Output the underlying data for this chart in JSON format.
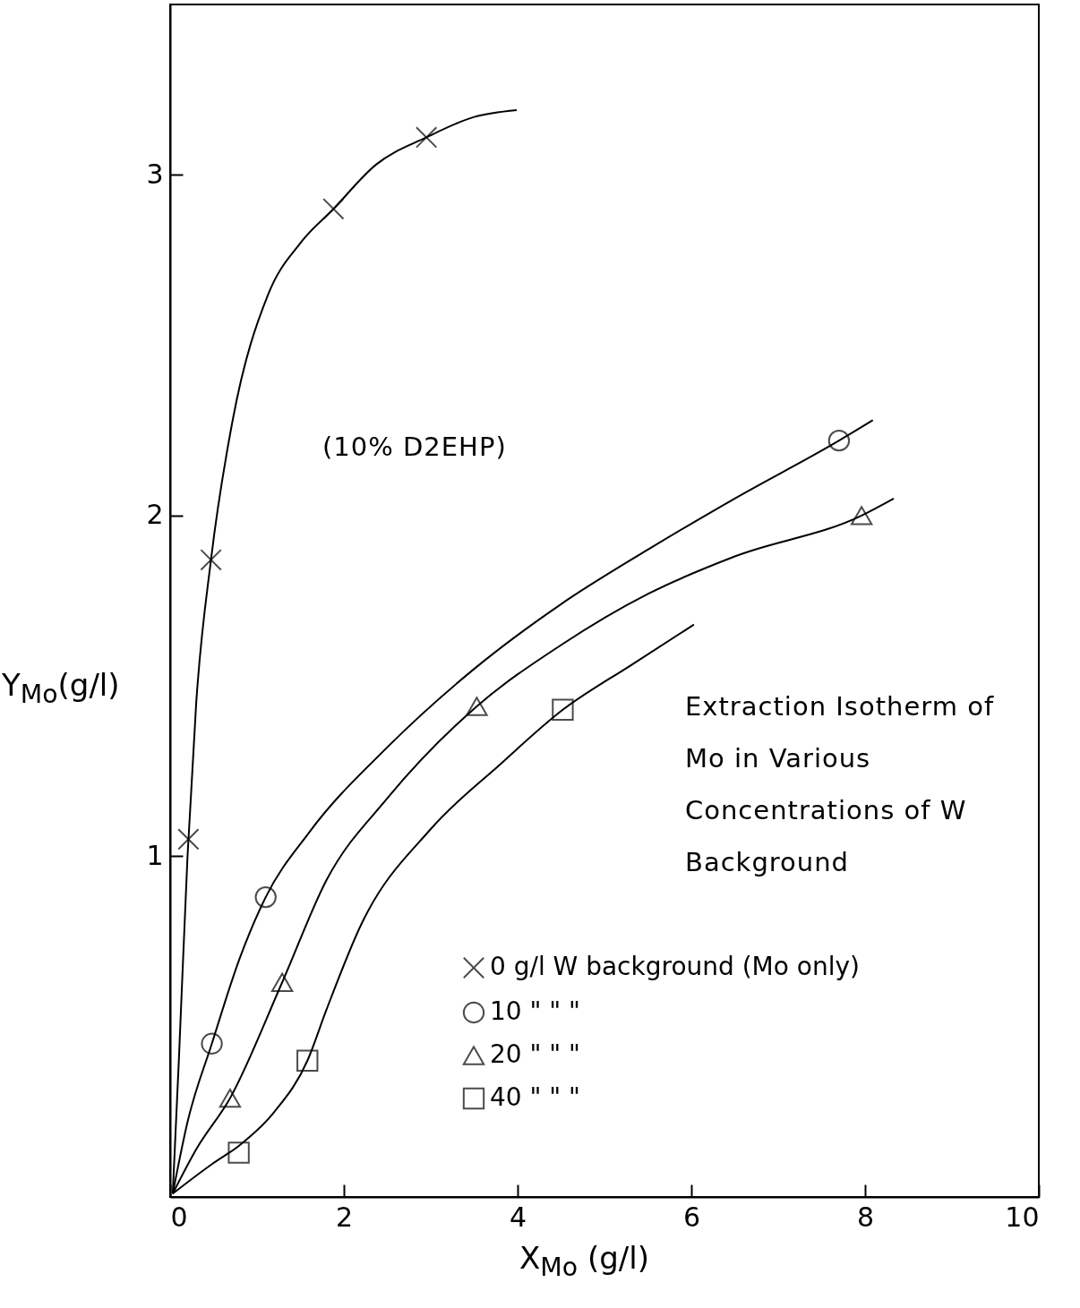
{
  "chart_data": {
    "type": "scatter",
    "xlabel": "X$_{Mo}$ (g/l)",
    "ylabel": "Y$_{Mo}$(g/l)",
    "annotations": [
      "(10% D2EHP)",
      "Extraction Isotherm of Mo in Various Concentrations of W Background"
    ],
    "xlim": [
      0,
      10
    ],
    "ylim": [
      0,
      3.5
    ],
    "xticks": [
      0,
      2,
      4,
      6,
      8,
      10
    ],
    "yticks": [
      1,
      2,
      3
    ],
    "grid": false,
    "legend": "bottom right",
    "series": [
      {
        "name": "0 g/l W background (Mo only)",
        "color": "#000000",
        "marker": "cross",
        "x": [
          0.21,
          0.47,
          1.88,
          2.95
        ],
        "values": [
          1.05,
          1.87,
          2.9,
          3.11
        ]
      },
      {
        "name": "10 \" \" \"",
        "color": "#000000",
        "marker": "circle",
        "x": [
          0.48,
          1.1,
          7.7
        ],
        "values": [
          0.45,
          0.88,
          2.22
        ]
      },
      {
        "name": "20 \" \" \"",
        "color": "#000000",
        "marker": "triangle",
        "x": [
          0.69,
          1.29,
          3.53,
          7.96
        ],
        "values": [
          0.29,
          0.63,
          1.44,
          2.0
        ]
      },
      {
        "name": "40 \" \" \"",
        "color": "#000000",
        "marker": "square",
        "x": [
          0.79,
          1.58,
          4.52
        ],
        "values": [
          0.13,
          0.4,
          1.43
        ]
      },
      {
        "type": "line",
        "color": "#000000",
        "x": [
          0.03,
          0.1,
          0.2,
          0.3,
          0.47,
          0.72,
          1.13,
          1.5,
          1.88,
          2.37,
          2.95,
          3.5,
          3.99
        ],
        "values": [
          0.01,
          0.4,
          1.0,
          1.45,
          1.87,
          2.28,
          2.65,
          2.8,
          2.9,
          3.03,
          3.11,
          3.17,
          3.19
        ]
      },
      {
        "type": "line",
        "color": "#000000",
        "x": [
          0.03,
          0.2,
          0.48,
          0.8,
          1.1,
          1.6,
          2.5,
          3.5,
          4.5,
          5.5,
          6.5,
          7.7,
          8.09
        ],
        "values": [
          0.01,
          0.22,
          0.45,
          0.7,
          0.88,
          1.07,
          1.32,
          1.55,
          1.74,
          1.9,
          2.05,
          2.22,
          2.28
        ]
      },
      {
        "type": "line",
        "color": "#000000",
        "x": [
          0.03,
          0.3,
          0.69,
          1.29,
          1.8,
          2.5,
          3.53,
          4.5,
          5.5,
          6.5,
          7.96,
          8.33
        ],
        "values": [
          0.01,
          0.14,
          0.29,
          0.63,
          0.93,
          1.17,
          1.44,
          1.62,
          1.77,
          1.88,
          2.0,
          2.05
        ]
      },
      {
        "type": "line",
        "color": "#000000",
        "x": [
          0.03,
          0.5,
          0.79,
          1.2,
          1.58,
          1.8,
          2.2,
          3.0,
          3.8,
          4.52,
          5.3,
          6.03
        ],
        "values": [
          0.01,
          0.1,
          0.15,
          0.25,
          0.4,
          0.55,
          0.8,
          1.08,
          1.27,
          1.43,
          1.56,
          1.68
        ]
      }
    ]
  }
}
